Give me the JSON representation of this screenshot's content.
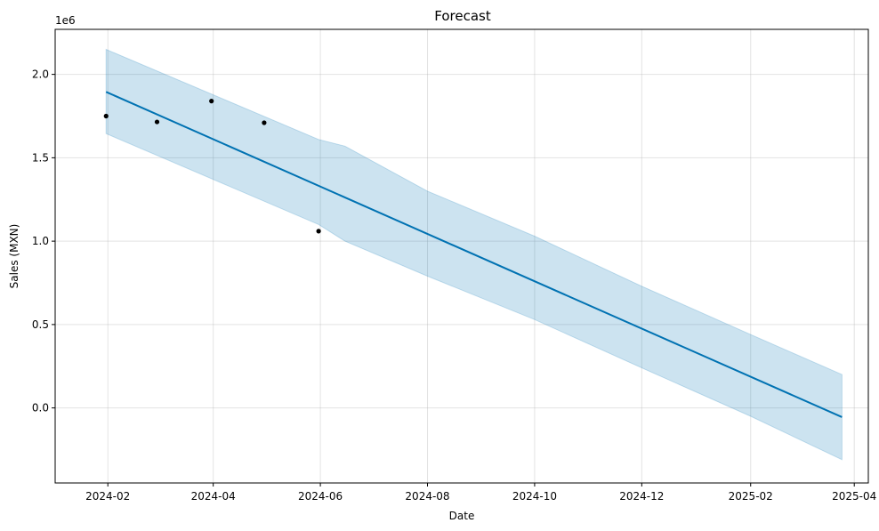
{
  "chart_data": {
    "type": "line",
    "title": "Forecast",
    "xlabel": "Date",
    "ylabel": "Sales (MXN)",
    "y_offset_label": "1e6",
    "y_scale": 1000000,
    "xlim": [
      "2024-01-02",
      "2025-04-09"
    ],
    "ylim": [
      -450000,
      2270000
    ],
    "grid": true,
    "x_ticks": [
      {
        "date": "2024-02-01",
        "label": "2024-02"
      },
      {
        "date": "2024-04-01",
        "label": "2024-04"
      },
      {
        "date": "2024-06-01",
        "label": "2024-06"
      },
      {
        "date": "2024-08-01",
        "label": "2024-08"
      },
      {
        "date": "2024-10-01",
        "label": "2024-10"
      },
      {
        "date": "2024-12-01",
        "label": "2024-12"
      },
      {
        "date": "2025-02-01",
        "label": "2025-02"
      },
      {
        "date": "2025-04-01",
        "label": "2025-04"
      }
    ],
    "y_ticks": [
      {
        "value": 0,
        "label": "0.0"
      },
      {
        "value": 500000,
        "label": "0.5"
      },
      {
        "value": 1000000,
        "label": "1.0"
      },
      {
        "value": 1500000,
        "label": "1.5"
      },
      {
        "value": 2000000,
        "label": "2.0"
      }
    ],
    "colors": {
      "forecast_line": "#0072b2",
      "uncertainty_fill": "#0072b2",
      "uncertainty_opacity": 0.2,
      "observed_points": "#000000"
    },
    "series": [
      {
        "kind": "observed",
        "points": [
          {
            "x": "2024-01-31",
            "y": 1750000
          },
          {
            "x": "2024-02-29",
            "y": 1715000
          },
          {
            "x": "2024-03-31",
            "y": 1840000
          },
          {
            "x": "2024-04-30",
            "y": 1710000
          },
          {
            "x": "2024-05-31",
            "y": 1060000
          }
        ]
      },
      {
        "kind": "forecast",
        "start": {
          "x": "2024-01-31",
          "y": 1895000
        },
        "end": {
          "x": "2025-03-25",
          "y": -55000
        },
        "lower_band": [
          {
            "x": "2024-01-31",
            "y": 1645000
          },
          {
            "x": "2024-05-31",
            "y": 1100000
          },
          {
            "x": "2024-06-15",
            "y": 1000000
          },
          {
            "x": "2024-08-01",
            "y": 790000
          },
          {
            "x": "2024-10-01",
            "y": 530000
          },
          {
            "x": "2024-12-01",
            "y": 240000
          },
          {
            "x": "2025-02-01",
            "y": -50000
          },
          {
            "x": "2025-03-25",
            "y": -310000
          }
        ],
        "upper_band": [
          {
            "x": "2024-01-31",
            "y": 2150000
          },
          {
            "x": "2024-05-31",
            "y": 1610000
          },
          {
            "x": "2024-06-15",
            "y": 1570000
          },
          {
            "x": "2024-08-01",
            "y": 1300000
          },
          {
            "x": "2024-10-01",
            "y": 1030000
          },
          {
            "x": "2024-12-01",
            "y": 730000
          },
          {
            "x": "2025-02-01",
            "y": 440000
          },
          {
            "x": "2025-03-25",
            "y": 200000
          }
        ]
      }
    ]
  }
}
